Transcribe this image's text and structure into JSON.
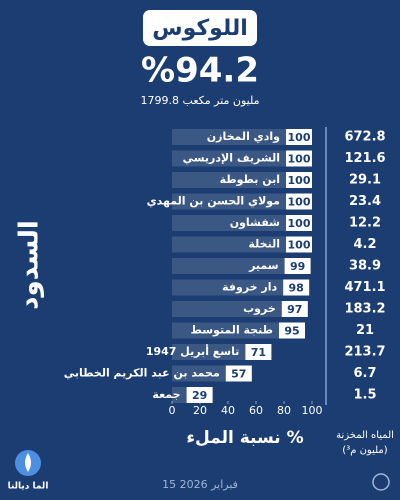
{
  "chart_data": {
    "type": "bar",
    "title": "اللوكوس",
    "headline": "%94.2",
    "subtitle": "1799.8 مليون متر مكعب",
    "side_label": "السدود",
    "x_label": "نسبة الملء %",
    "date": "15 فبراير 2026",
    "logo": "الما ديالنا",
    "categories": [
      "وادي المخازن",
      "الشريف الإدريسي",
      "ابن بطوطة",
      "مولاي الحسن بن المهدي",
      "شفشاون",
      "النخلة",
      "سمير",
      "دار خروفة",
      "خروب",
      "طنجة المتوسط",
      "تاسع أبريل 1947",
      "محمد بن عبد الكريم الخطابي",
      "جمعة"
    ],
    "values": [
      100,
      100,
      100,
      100,
      100,
      100,
      99,
      98,
      97,
      95,
      71,
      57,
      29
    ],
    "color": "#ffffff",
    "storage": {
      "name": [
        "المياه المخزنة",
        "(مليون م³)"
      ],
      "values": [
        672.8,
        121.6,
        29.1,
        23.4,
        12.2,
        4.2,
        38.9,
        471.1,
        183.2,
        21,
        213.7,
        6.7,
        1.5
      ]
    },
    "xlim": [
      0,
      100
    ],
    "xticks": [
      0,
      20,
      40,
      60,
      80,
      100
    ]
  }
}
